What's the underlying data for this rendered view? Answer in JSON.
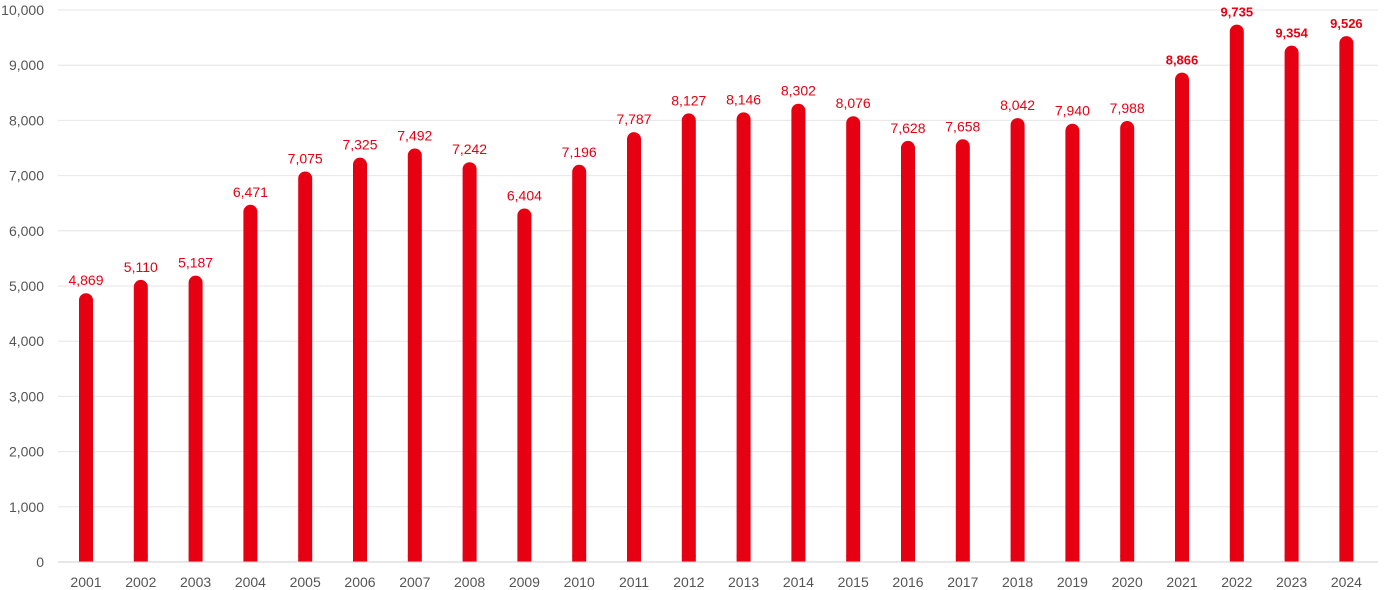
{
  "chart_data": {
    "type": "bar",
    "categories": [
      "2001",
      "2002",
      "2003",
      "2004",
      "2005",
      "2006",
      "2007",
      "2008",
      "2009",
      "2010",
      "2011",
      "2012",
      "2013",
      "2014",
      "2015",
      "2016",
      "2017",
      "2018",
      "2019",
      "2020",
      "2021",
      "2022",
      "2023",
      "2024"
    ],
    "values": [
      4869,
      5110,
      5187,
      6471,
      7075,
      7325,
      7492,
      7242,
      6404,
      7196,
      7787,
      8127,
      8146,
      8302,
      8076,
      7628,
      7658,
      8042,
      7940,
      7988,
      8866,
      9735,
      9354,
      9526
    ],
    "data_labels": [
      "4,869",
      "5,110",
      "5,187",
      "6,471",
      "7,075",
      "7,325",
      "7,492",
      "7,242",
      "6,404",
      "7,196",
      "7,787",
      "8,127",
      "8,146",
      "8,302",
      "8,076",
      "7,628",
      "7,658",
      "8,042",
      "7,940",
      "7,988",
      "8,866",
      "9,735",
      "9,354",
      "9,526"
    ],
    "bold_labels_from_index": 20,
    "title": "",
    "xlabel": "",
    "ylabel": "",
    "ylim": [
      0,
      10000
    ],
    "yticks": [
      0,
      1000,
      2000,
      3000,
      4000,
      5000,
      6000,
      7000,
      8000,
      9000,
      10000
    ],
    "ytick_labels": [
      "0",
      "1,000",
      "2,000",
      "3,000",
      "4,000",
      "5,000",
      "6,000",
      "7,000",
      "8,000",
      "9,000",
      "10,000"
    ],
    "grid": true,
    "legend": "none",
    "bar_color": "#e60012"
  }
}
